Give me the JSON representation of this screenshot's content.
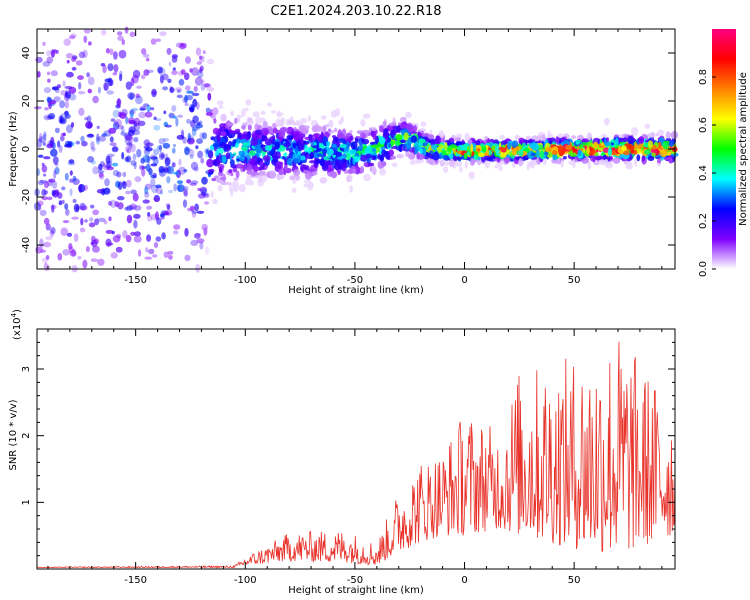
{
  "title": "C2E1.2024.203.10.22.R18",
  "chart_data": [
    {
      "type": "heatmap",
      "xlabel": "Height of straight line (km)",
      "ylabel": "Frequency (Hz)",
      "xlim": [
        -195,
        96
      ],
      "ylim": [
        -50,
        50
      ],
      "xticks": [
        -150,
        -100,
        -50,
        0,
        50
      ],
      "yticks": [
        -40,
        -20,
        0,
        20,
        40
      ],
      "colorbar": {
        "label": "Normalized spectral amplitude",
        "range": [
          0,
          1
        ],
        "ticks": [
          0.0,
          0.2,
          0.4,
          0.6,
          0.8
        ],
        "colormap": [
          "#ffffff",
          "#7f00ff",
          "#0000ff",
          "#00ffff",
          "#00ff00",
          "#ffff00",
          "#ff8000",
          "#ff0000",
          "#ff0080"
        ]
      },
      "profile": [
        {
          "x": -195,
          "center": 0,
          "spread": 45,
          "amp": 0.25
        },
        {
          "x": -120,
          "center": 0,
          "spread": 45,
          "amp": 0.3
        },
        {
          "x": -115,
          "center": 0,
          "spread": 10,
          "amp": 0.3
        },
        {
          "x": -100,
          "center": 0,
          "spread": 7,
          "amp": 0.35
        },
        {
          "x": -50,
          "center": -2,
          "spread": 6,
          "amp": 0.38
        },
        {
          "x": -35,
          "center": 2,
          "spread": 5,
          "amp": 0.45
        },
        {
          "x": -28,
          "center": 5,
          "spread": 4,
          "amp": 0.5
        },
        {
          "x": -15,
          "center": 0,
          "spread": 3,
          "amp": 0.55
        },
        {
          "x": 0,
          "center": -1,
          "spread": 2.5,
          "amp": 0.75
        },
        {
          "x": 50,
          "center": 0,
          "spread": 2.5,
          "amp": 0.85
        },
        {
          "x": 96,
          "center": 0,
          "spread": 3,
          "amp": 0.8
        }
      ]
    },
    {
      "type": "line",
      "xlabel": "Height of straight line (km)",
      "ylabel": "SNR (10 * v/v)",
      "y_multiplier": "(x10",
      "y_multiplier_exp": "4",
      "y_multiplier_close": ")",
      "xlim": [
        -195,
        96
      ],
      "ylim": [
        0,
        3.6
      ],
      "xticks": [
        -150,
        -100,
        -50,
        0,
        50
      ],
      "yticks": [
        1,
        2,
        3
      ],
      "series": [
        {
          "color": "#e8322a",
          "envelope": [
            {
              "x": -195,
              "base": 0.02,
              "peak": 0.03
            },
            {
              "x": -105,
              "base": 0.02,
              "peak": 0.05
            },
            {
              "x": -100,
              "base": 0.05,
              "peak": 0.18
            },
            {
              "x": -80,
              "base": 0.12,
              "peak": 0.55
            },
            {
              "x": -55,
              "base": 0.1,
              "peak": 0.6
            },
            {
              "x": -40,
              "base": 0.05,
              "peak": 0.4
            },
            {
              "x": -30,
              "base": 0.25,
              "peak": 1.2
            },
            {
              "x": -20,
              "base": 0.4,
              "peak": 1.65
            },
            {
              "x": -10,
              "base": 0.5,
              "peak": 1.8
            },
            {
              "x": 0,
              "base": 0.5,
              "peak": 2.4
            },
            {
              "x": 15,
              "base": 0.6,
              "peak": 2.1
            },
            {
              "x": 25,
              "base": 0.5,
              "peak": 3.0
            },
            {
              "x": 50,
              "base": 0.3,
              "peak": 3.2
            },
            {
              "x": 70,
              "base": 0.2,
              "peak": 3.6
            },
            {
              "x": 96,
              "base": 0.5,
              "peak": 2.4
            }
          ]
        }
      ]
    }
  ]
}
